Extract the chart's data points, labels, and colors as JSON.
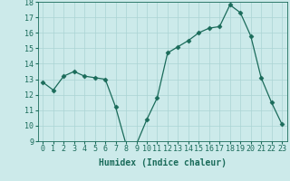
{
  "x": [
    0,
    1,
    2,
    3,
    4,
    5,
    6,
    7,
    8,
    9,
    10,
    11,
    12,
    13,
    14,
    15,
    16,
    17,
    18,
    19,
    20,
    21,
    22,
    23
  ],
  "y": [
    12.8,
    12.3,
    13.2,
    13.5,
    13.2,
    13.1,
    13.0,
    11.2,
    8.8,
    8.8,
    10.4,
    11.8,
    14.7,
    15.1,
    15.5,
    16.0,
    16.3,
    16.4,
    17.8,
    17.3,
    15.8,
    13.1,
    11.5,
    10.1
  ],
  "line_color": "#1a6b5a",
  "marker": "D",
  "markersize": 2.5,
  "bg_color": "#cceaea",
  "grid_color": "#aad4d4",
  "xlabel": "Humidex (Indice chaleur)",
  "ylim": [
    9,
    18
  ],
  "xlim": [
    -0.5,
    23.5
  ],
  "yticks": [
    9,
    10,
    11,
    12,
    13,
    14,
    15,
    16,
    17,
    18
  ],
  "xticks": [
    0,
    1,
    2,
    3,
    4,
    5,
    6,
    7,
    8,
    9,
    10,
    11,
    12,
    13,
    14,
    15,
    16,
    17,
    18,
    19,
    20,
    21,
    22,
    23
  ],
  "title_color": "#1a6b5a",
  "label_fontsize": 7,
  "tick_fontsize": 6
}
